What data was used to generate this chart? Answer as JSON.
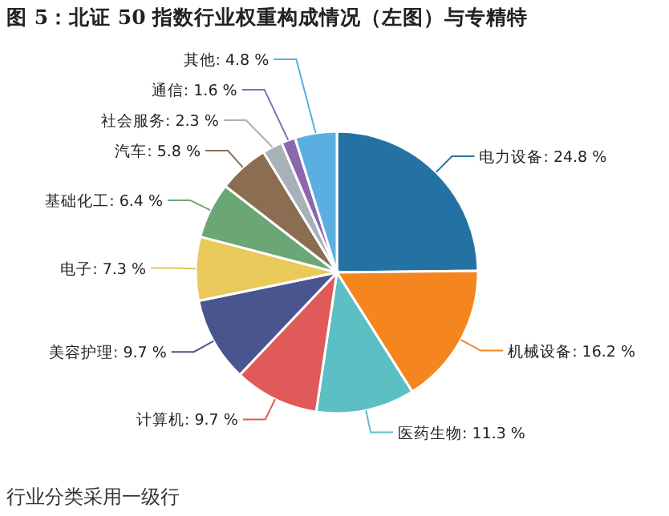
{
  "chart_data": {
    "type": "pie",
    "title": "图 5：北证 50 指数行业权重构成情况（左图）与专精特",
    "categories": [
      "电力设备",
      "机械设备",
      "医药生物",
      "计算机",
      "美容护理",
      "电子",
      "基础化工",
      "汽车",
      "社会服务",
      "通信",
      "其他"
    ],
    "values": [
      24.8,
      16.2,
      11.3,
      9.7,
      9.7,
      7.3,
      6.4,
      5.8,
      2.3,
      1.6,
      4.8
    ],
    "value_labels": [
      "24.8 %",
      "16.2 %",
      "11.3 %",
      "9.7 %",
      "9.7 %",
      "7.3 %",
      "6.4 %",
      "5.8 %",
      "2.3 %",
      "1.6 %",
      "4.8 %"
    ],
    "colors": [
      "#2472a4",
      "#f5861f",
      "#5bbfc4",
      "#e05a5a",
      "#4a5590",
      "#e8c95a",
      "#6aa774",
      "#8b6e52",
      "#a8b0b8",
      "#8a68b0",
      "#5aafe0"
    ],
    "annotations": [
      "行业分类采用一级行"
    ]
  }
}
